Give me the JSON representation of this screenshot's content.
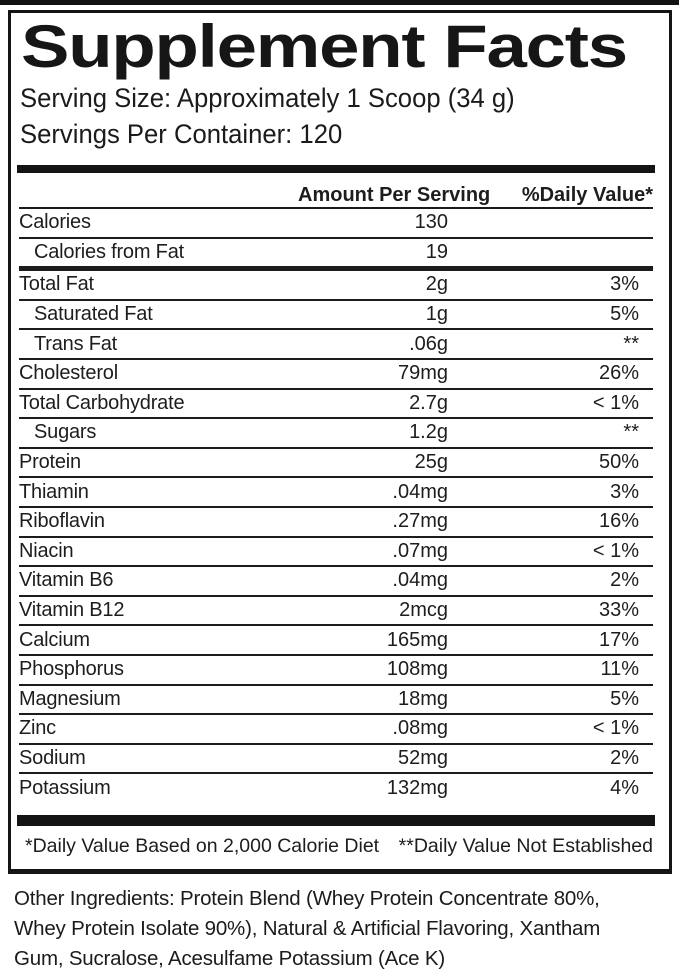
{
  "title": "Supplement Facts",
  "serving": {
    "size": "Serving Size: Approximately 1 Scoop (34 g)",
    "per_container": "Servings Per Container: 120"
  },
  "table": {
    "columns": {
      "amount": "Amount Per Serving",
      "daily_value": "%Daily Value*"
    },
    "rows": [
      {
        "label": "Calories",
        "amount": "130",
        "dv": ""
      },
      {
        "label": "Calories from Fat",
        "amount": "19",
        "dv": ""
      },
      {
        "label": "Total Fat",
        "amount": "2g",
        "dv": "3%"
      },
      {
        "label": "Saturated Fat",
        "amount": "1g",
        "dv": "5%"
      },
      {
        "label": "Trans Fat",
        "amount": ".06g",
        "dv": "**"
      },
      {
        "label": "Cholesterol",
        "amount": "79mg",
        "dv": "26%"
      },
      {
        "label": "Total Carbohydrate",
        "amount": "2.7g",
        "dv": "< 1%"
      },
      {
        "label": "Sugars",
        "amount": "1.2g",
        "dv": "**"
      },
      {
        "label": "Protein",
        "amount": "25g",
        "dv": "50%"
      },
      {
        "label": "Thiamin",
        "amount": ".04mg",
        "dv": "3%"
      },
      {
        "label": "Riboflavin",
        "amount": ".27mg",
        "dv": "16%"
      },
      {
        "label": "Niacin",
        "amount": ".07mg",
        "dv": "< 1%"
      },
      {
        "label": "Vitamin B6",
        "amount": ".04mg",
        "dv": "2%"
      },
      {
        "label": "Vitamin B12",
        "amount": "2mcg",
        "dv": "33%"
      },
      {
        "label": "Calcium",
        "amount": "165mg",
        "dv": "17%"
      },
      {
        "label": "Phosphorus",
        "amount": "108mg",
        "dv": "11%"
      },
      {
        "label": "Magnesium",
        "amount": "18mg",
        "dv": "5%"
      },
      {
        "label": "Zinc",
        "amount": ".08mg",
        "dv": "< 1%"
      },
      {
        "label": "Sodium",
        "amount": "52mg",
        "dv": "2%"
      },
      {
        "label": "Potassium",
        "amount": "132mg",
        "dv": "4%"
      }
    ]
  },
  "footnotes": {
    "daily_value_basis": "*Daily Value Based on 2,000 Calorie Diet",
    "not_established": "**Daily Value Not Established"
  },
  "other_ingredients": {
    "lines": [
      "Other Ingredients: Protein Blend (Whey Protein Concentrate 80%,",
      "Whey Protein Isolate 90%), Natural & Artificial Flavoring, Xantham",
      "Gum, Sucralose, Acesulfame Potassium (Ace K)"
    ]
  }
}
